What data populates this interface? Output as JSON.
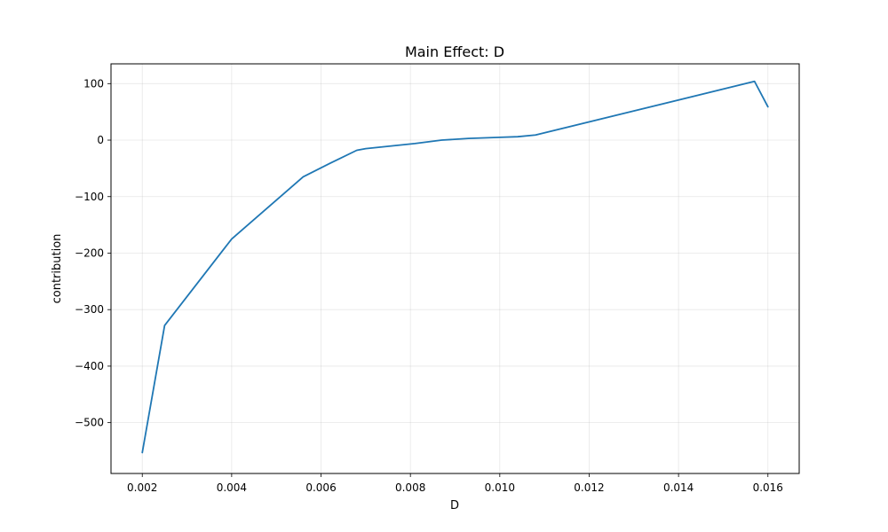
{
  "chart_data": {
    "type": "line",
    "title": "Main Effect: D",
    "xlabel": "D",
    "ylabel": "contribution",
    "xlim": [
      0.0013,
      0.0167
    ],
    "ylim": [
      -590,
      135
    ],
    "x_ticks": [
      "0.002",
      "0.004",
      "0.006",
      "0.008",
      "0.010",
      "0.012",
      "0.014",
      "0.016"
    ],
    "y_ticks": [
      "100",
      "0",
      "−100",
      "−200",
      "−300",
      "−400",
      "−500"
    ],
    "x_tick_values": [
      0.002,
      0.004,
      0.006,
      0.008,
      0.01,
      0.012,
      0.014,
      0.016
    ],
    "y_tick_values": [
      100,
      0,
      -100,
      -200,
      -300,
      -400,
      -500
    ],
    "grid": true,
    "series": [
      {
        "color": "#1f77b4",
        "x": [
          0.002,
          0.0025,
          0.004,
          0.0056,
          0.0062,
          0.0068,
          0.007,
          0.0081,
          0.0087,
          0.0093,
          0.01,
          0.0104,
          0.0108,
          0.0157,
          0.016
        ],
        "y": [
          -553,
          -328,
          -175,
          -65,
          -41,
          -18,
          -15,
          -6,
          0,
          3,
          5,
          6,
          9,
          104,
          59
        ]
      }
    ]
  }
}
